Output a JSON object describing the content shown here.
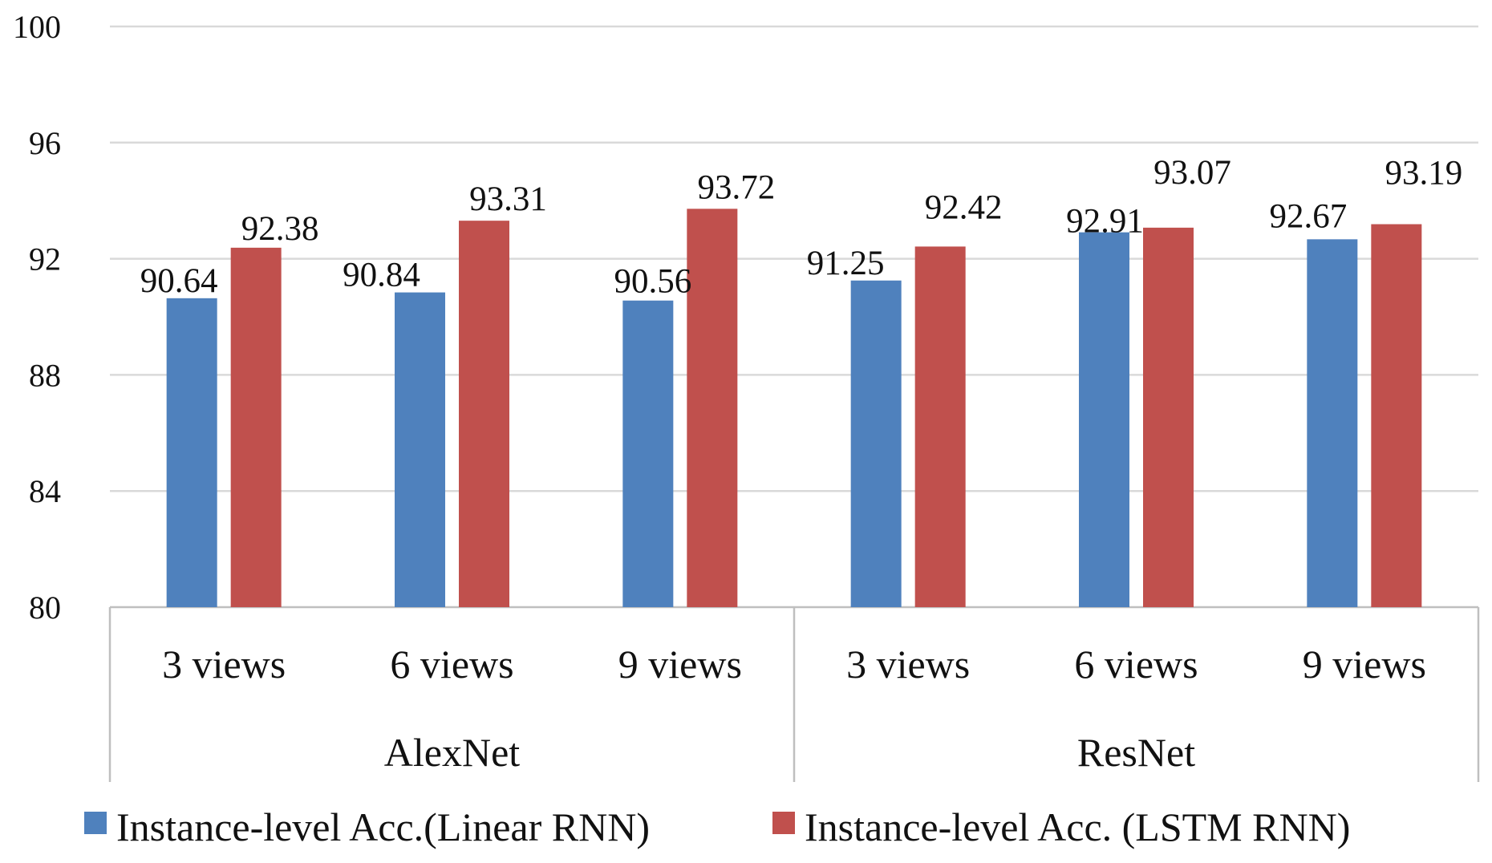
{
  "chart_data": {
    "type": "bar",
    "title": "",
    "xlabel": "",
    "ylabel": "",
    "ylim": [
      80,
      100
    ],
    "yticks": [
      80,
      84,
      88,
      92,
      96,
      100
    ],
    "grid": true,
    "legend_position": "bottom",
    "groups": [
      {
        "name": "AlexNet",
        "categories": [
          "3 views",
          "6 views",
          "9 views"
        ]
      },
      {
        "name": "ResNet",
        "categories": [
          "3 views",
          "6 views",
          "9 views"
        ]
      }
    ],
    "series": [
      {
        "name": "Instance-level Acc.(Linear RNN)",
        "color": "#4f81bd",
        "values": [
          90.64,
          90.84,
          90.56,
          91.25,
          92.91,
          92.67
        ]
      },
      {
        "name": "Instance-level Acc. (LSTM RNN)",
        "color": "#c0504d",
        "values": [
          92.38,
          93.31,
          93.72,
          92.42,
          93.07,
          93.19
        ]
      }
    ]
  }
}
